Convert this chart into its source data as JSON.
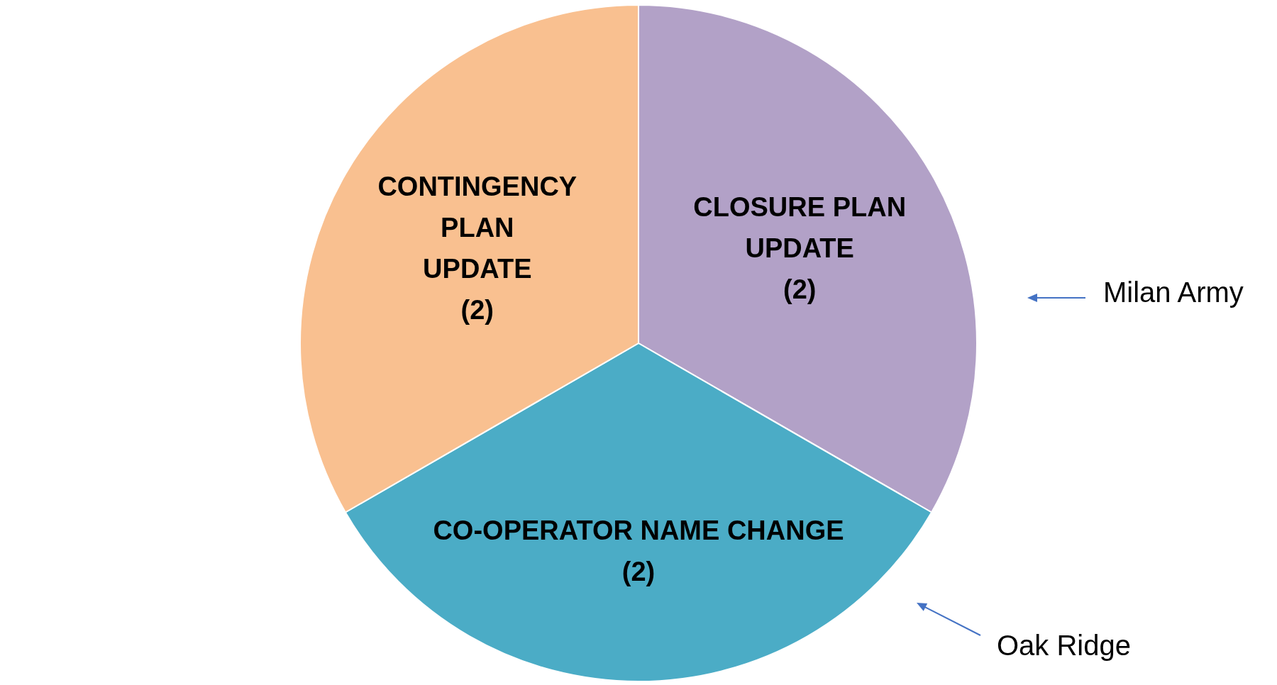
{
  "chart_data": {
    "type": "pie",
    "categories": [
      "CLOSURE PLAN UPDATE",
      "CO-OPERATOR NAME CHANGE",
      "CONTINGENCY PLAN UPDATE"
    ],
    "values": [
      2,
      2,
      2
    ],
    "colors": [
      "#b2a1c7",
      "#4bacc6",
      "#f9c090"
    ],
    "value_labels": [
      "(2)",
      "(2)",
      "(2)"
    ],
    "annotations": [
      "Milan Army",
      "Oak Ridge"
    ],
    "legend": false
  }
}
